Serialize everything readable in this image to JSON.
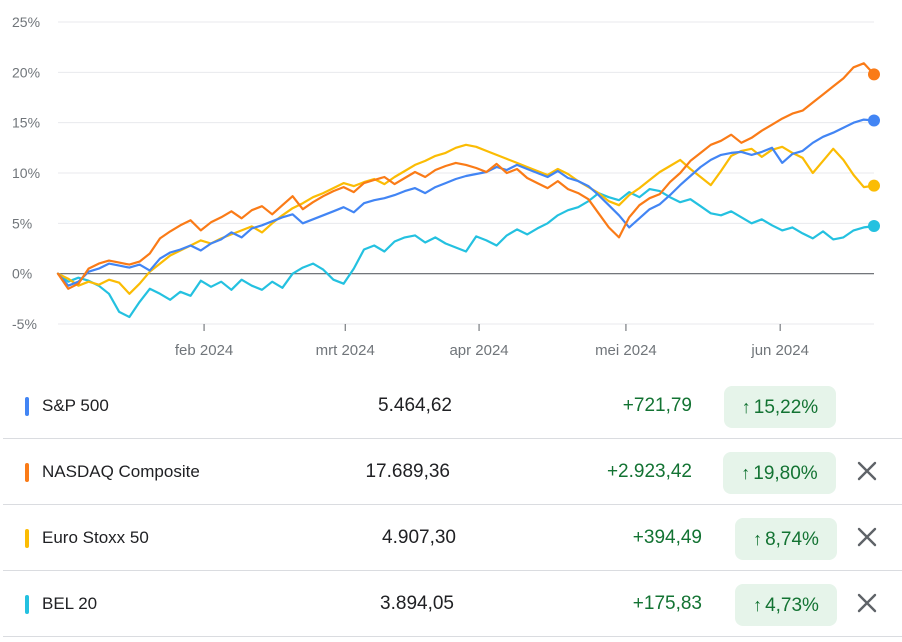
{
  "chart_data": {
    "type": "line",
    "y_ticks": [
      "25%",
      "20%",
      "15%",
      "10%",
      "5%",
      "0%",
      "-5%"
    ],
    "y_values": [
      25,
      20,
      15,
      10,
      5,
      0,
      -5
    ],
    "x_ticks": [
      "feb 2024",
      "mrt 2024",
      "apr 2024",
      "mei 2024",
      "jun 2024"
    ],
    "ylim": [
      -5,
      25
    ],
    "grid": "horizontal",
    "series": [
      {
        "name": "S&P 500",
        "color": "#4285f4",
        "values": [
          0,
          -1.2,
          -0.8,
          0.2,
          0.5,
          1.0,
          0.8,
          0.6,
          0.9,
          0.3,
          1.5,
          2.1,
          2.4,
          2.8,
          2.3,
          3.0,
          3.4,
          4.1,
          3.6,
          4.5,
          4.8,
          5.2,
          5.6,
          5.9,
          5.0,
          5.4,
          5.8,
          6.2,
          6.6,
          6.1,
          7.0,
          7.3,
          7.5,
          7.8,
          8.2,
          8.5,
          8.0,
          8.6,
          9.0,
          9.4,
          9.7,
          9.9,
          10.1,
          10.6,
          10.3,
          10.8,
          10.4,
          10.0,
          9.6,
          10.2,
          9.5,
          9.2,
          8.7,
          7.8,
          6.8,
          5.8,
          4.6,
          5.5,
          6.4,
          6.9,
          7.8,
          8.8,
          9.7,
          10.6,
          11.3,
          11.8,
          12.0,
          12.1,
          11.8,
          12.1,
          12.5,
          11.0,
          11.9,
          12.2,
          13.0,
          13.6,
          14.0,
          14.5,
          15.0,
          15.3,
          15.22
        ]
      },
      {
        "name": "NASDAQ Composite",
        "color": "#fa7b17",
        "values": [
          0,
          -1.5,
          -1.0,
          0.5,
          1.0,
          1.3,
          1.1,
          0.9,
          1.2,
          2.0,
          3.5,
          4.2,
          4.8,
          5.3,
          4.3,
          5.1,
          5.6,
          6.2,
          5.5,
          6.3,
          6.7,
          5.9,
          6.8,
          7.7,
          6.4,
          7.1,
          7.7,
          8.2,
          8.6,
          8.1,
          9.0,
          9.3,
          9.6,
          8.9,
          9.5,
          10.1,
          9.6,
          10.3,
          10.7,
          11.0,
          10.8,
          10.5,
          10.1,
          10.9,
          10.0,
          10.4,
          9.5,
          9.0,
          8.5,
          9.2,
          8.4,
          8.0,
          7.4,
          6.0,
          4.6,
          3.6,
          5.6,
          6.8,
          7.5,
          7.9,
          9.1,
          10.0,
          11.2,
          12.0,
          12.8,
          13.2,
          13.8,
          13.0,
          13.5,
          14.2,
          14.8,
          15.4,
          15.9,
          16.2,
          17.0,
          17.8,
          18.6,
          19.4,
          20.5,
          20.9,
          19.8
        ]
      },
      {
        "name": "Euro Stoxx 50",
        "color": "#fbbc04",
        "values": [
          0,
          -0.5,
          -1.2,
          -0.8,
          -1.1,
          -0.6,
          -0.9,
          -2.0,
          -1.0,
          0.2,
          1.0,
          1.8,
          2.3,
          2.8,
          3.3,
          3.0,
          3.5,
          3.9,
          4.3,
          4.7,
          4.1,
          5.0,
          5.8,
          6.5,
          7.0,
          7.6,
          8.0,
          8.5,
          9.0,
          8.7,
          9.1,
          9.4,
          8.9,
          9.6,
          10.2,
          10.8,
          11.2,
          11.7,
          12.0,
          12.5,
          12.8,
          12.6,
          12.2,
          11.8,
          11.4,
          11.0,
          10.6,
          10.2,
          9.8,
          10.4,
          9.9,
          9.2,
          8.6,
          8.0,
          7.2,
          6.8,
          7.8,
          8.5,
          9.3,
          10.1,
          10.7,
          11.3,
          10.4,
          9.6,
          8.8,
          10.2,
          11.7,
          12.2,
          12.4,
          11.6,
          12.3,
          12.6,
          12.0,
          11.5,
          10.0,
          11.2,
          12.4,
          11.3,
          9.8,
          8.6,
          8.74
        ]
      },
      {
        "name": "BEL 20",
        "color": "#24c1e0",
        "values": [
          0,
          -0.8,
          -0.4,
          -0.7,
          -1.2,
          -2.0,
          -3.8,
          -4.3,
          -2.8,
          -1.5,
          -2.0,
          -2.6,
          -1.8,
          -2.2,
          -0.7,
          -1.3,
          -0.8,
          -1.6,
          -0.6,
          -1.2,
          -1.6,
          -0.8,
          -1.4,
          0.0,
          0.6,
          1.0,
          0.4,
          -0.6,
          -1.0,
          0.5,
          2.4,
          2.8,
          2.2,
          3.2,
          3.6,
          3.8,
          3.1,
          3.6,
          3.0,
          2.6,
          2.2,
          3.7,
          3.3,
          2.8,
          3.8,
          4.4,
          3.9,
          4.5,
          5.0,
          5.8,
          6.3,
          6.6,
          7.2,
          8.0,
          7.6,
          7.3,
          8.1,
          7.6,
          8.4,
          8.2,
          7.6,
          7.1,
          7.4,
          6.7,
          6.0,
          5.8,
          6.2,
          5.6,
          5.0,
          5.4,
          4.8,
          4.3,
          4.6,
          4.0,
          3.5,
          4.2,
          3.4,
          3.6,
          4.3,
          4.6,
          4.73
        ]
      }
    ]
  },
  "rows": [
    {
      "name": "S&P 500",
      "price": "5.464,62",
      "change": "+721,79",
      "percent": "15,22%",
      "color": "#4285f4",
      "closable": false
    },
    {
      "name": "NASDAQ Composite",
      "price": "17.689,36",
      "change": "+2.923,42",
      "percent": "19,80%",
      "color": "#fa7b17",
      "closable": true
    },
    {
      "name": "Euro Stoxx 50",
      "price": "4.907,30",
      "change": "+394,49",
      "percent": "8,74%",
      "color": "#fbbc04",
      "closable": true
    },
    {
      "name": "BEL 20",
      "price": "3.894,05",
      "change": "+175,83",
      "percent": "4,73%",
      "color": "#24c1e0",
      "closable": true
    }
  ],
  "icons": {
    "arrow": "arrow-up-icon",
    "close": "close-icon"
  },
  "arrow_glyph": "↑"
}
